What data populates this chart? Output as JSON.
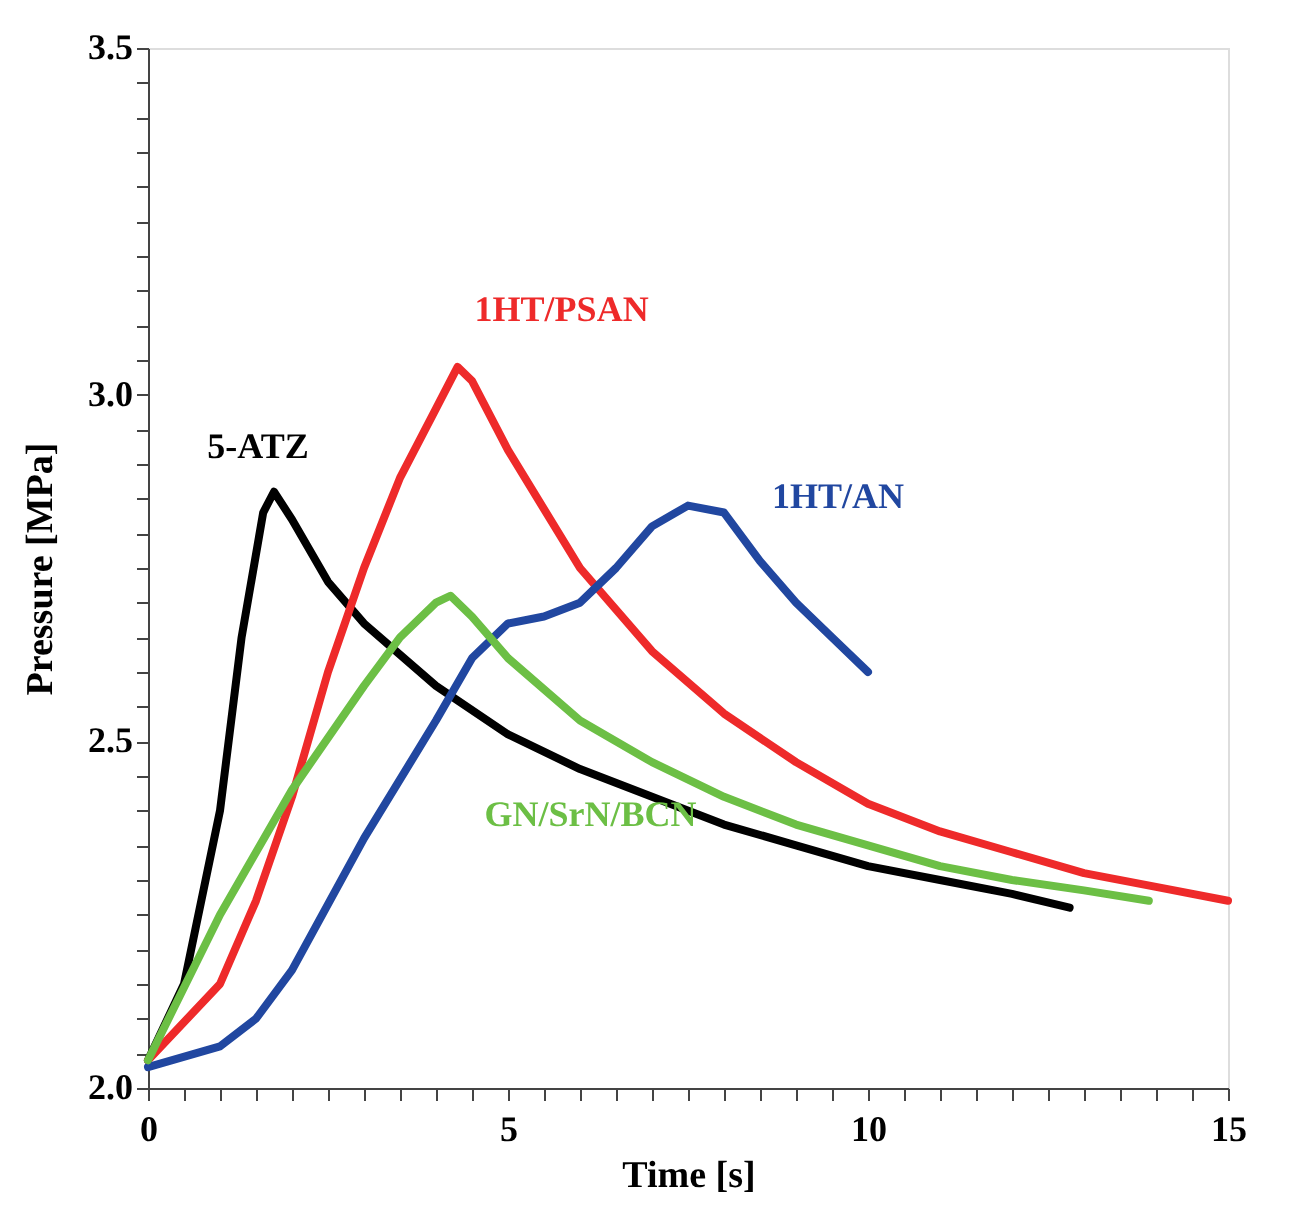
{
  "chart_data": {
    "type": "line",
    "xlabel": "Time [s]",
    "ylabel": "Pressure [MPa]",
    "xlim": [
      0,
      15
    ],
    "ylim": [
      2.0,
      3.5
    ],
    "xticks": [
      0,
      {
        "value": 0.5,
        "label": null
      },
      {
        "value": 1,
        "label": null
      },
      {
        "value": 1.5,
        "label": null
      },
      {
        "value": 2,
        "label": null
      },
      {
        "value": 2.5,
        "label": null
      },
      {
        "value": 3,
        "label": null
      },
      {
        "value": 3.5,
        "label": null
      },
      {
        "value": 4,
        "label": null
      },
      {
        "value": 4.5,
        "label": null
      },
      5,
      {
        "value": 5.5,
        "label": null
      },
      {
        "value": 6,
        "label": null
      },
      {
        "value": 6.5,
        "label": null
      },
      {
        "value": 7,
        "label": null
      },
      {
        "value": 7.5,
        "label": null
      },
      {
        "value": 8,
        "label": null
      },
      {
        "value": 8.5,
        "label": null
      },
      {
        "value": 9,
        "label": null
      },
      {
        "value": 9.5,
        "label": null
      },
      10,
      {
        "value": 10.5,
        "label": null
      },
      {
        "value": 11,
        "label": null
      },
      {
        "value": 11.5,
        "label": null
      },
      {
        "value": 12,
        "label": null
      },
      {
        "value": 12.5,
        "label": null
      },
      {
        "value": 13,
        "label": null
      },
      {
        "value": 13.5,
        "label": null
      },
      {
        "value": 14,
        "label": null
      },
      {
        "value": 14.5,
        "label": null
      },
      15
    ],
    "yticks": [
      {
        "value": 2.0,
        "label": "2.0"
      },
      {
        "value": 2.05,
        "label": null
      },
      {
        "value": 2.1,
        "label": null
      },
      {
        "value": 2.15,
        "label": null
      },
      {
        "value": 2.2,
        "label": null
      },
      {
        "value": 2.25,
        "label": null
      },
      {
        "value": 2.3,
        "label": null
      },
      {
        "value": 2.35,
        "label": null
      },
      {
        "value": 2.4,
        "label": null
      },
      {
        "value": 2.45,
        "label": null
      },
      2.5,
      {
        "value": 2.55,
        "label": null
      },
      {
        "value": 2.6,
        "label": null
      },
      {
        "value": 2.65,
        "label": null
      },
      {
        "value": 2.7,
        "label": null
      },
      {
        "value": 2.75,
        "label": null
      },
      {
        "value": 2.8,
        "label": null
      },
      {
        "value": 2.85,
        "label": null
      },
      {
        "value": 2.9,
        "label": null
      },
      {
        "value": 2.95,
        "label": null
      },
      {
        "value": 3.0,
        "label": "3.0"
      },
      {
        "value": 3.05,
        "label": null
      },
      {
        "value": 3.1,
        "label": null
      },
      {
        "value": 3.15,
        "label": null
      },
      {
        "value": 3.2,
        "label": null
      },
      {
        "value": 3.25,
        "label": null
      },
      {
        "value": 3.3,
        "label": null
      },
      {
        "value": 3.35,
        "label": null
      },
      {
        "value": 3.4,
        "label": null
      },
      {
        "value": 3.45,
        "label": null
      },
      3.5
    ],
    "grid": false,
    "marker": "none",
    "line_style": "solid",
    "series": [
      {
        "name": "5-ATZ",
        "color": "#000000",
        "x": [
          0,
          0.5,
          1,
          1.3,
          1.6,
          1.75,
          2,
          2.5,
          3,
          4,
          5,
          6,
          7,
          8,
          9,
          10,
          11,
          12,
          12.8
        ],
        "values": [
          2.04,
          2.15,
          2.4,
          2.65,
          2.83,
          2.86,
          2.82,
          2.73,
          2.67,
          2.58,
          2.51,
          2.46,
          2.42,
          2.38,
          2.35,
          2.32,
          2.3,
          2.28,
          2.26
        ]
      },
      {
        "name": "1HT/PSAN",
        "color": "#ee2a2a",
        "x": [
          0,
          1,
          1.5,
          2,
          2.5,
          3,
          3.5,
          4,
          4.3,
          4.5,
          5,
          6,
          7,
          8,
          9,
          10,
          11,
          12,
          13,
          14,
          15
        ],
        "values": [
          2.04,
          2.15,
          2.27,
          2.42,
          2.6,
          2.75,
          2.88,
          2.98,
          3.04,
          3.02,
          2.92,
          2.75,
          2.63,
          2.54,
          2.47,
          2.41,
          2.37,
          2.34,
          2.31,
          2.29,
          2.27
        ]
      },
      {
        "name": "1HT/AN",
        "color": "#2147a0",
        "x": [
          0,
          1,
          1.5,
          2,
          3,
          4,
          4.5,
          5,
          5.5,
          6,
          6.5,
          7,
          7.5,
          8,
          8.5,
          9,
          9.5,
          10
        ],
        "values": [
          2.03,
          2.06,
          2.1,
          2.17,
          2.36,
          2.53,
          2.62,
          2.67,
          2.68,
          2.7,
          2.75,
          2.81,
          2.84,
          2.83,
          2.76,
          2.7,
          2.65,
          2.6
        ]
      },
      {
        "name": "GN/SrN/BCN",
        "color": "#6cbf45",
        "x": [
          0,
          1,
          2,
          3,
          3.5,
          4,
          4.2,
          4.5,
          5,
          6,
          7,
          8,
          9,
          10,
          11,
          12,
          13,
          13.9
        ],
        "values": [
          2.04,
          2.25,
          2.43,
          2.58,
          2.65,
          2.7,
          2.71,
          2.68,
          2.62,
          2.53,
          2.47,
          2.42,
          2.38,
          2.35,
          2.32,
          2.3,
          2.285,
          2.27
        ]
      }
    ]
  }
}
